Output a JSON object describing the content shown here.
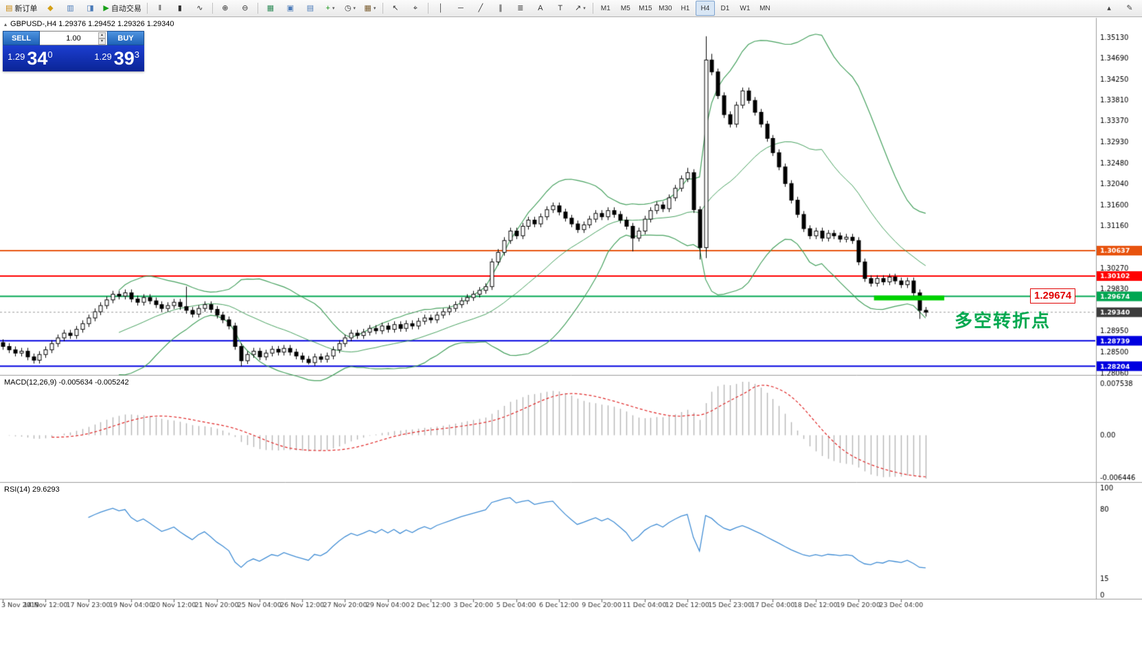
{
  "toolbar": {
    "items": [
      {
        "name": "new-order-button",
        "icon": "▤",
        "icon_name": "new-order-icon",
        "color": "#c8860a",
        "label": "新订单"
      },
      {
        "name": "chart-wizard-button",
        "icon": "◆",
        "icon_name": "wizard-icon",
        "color": "#d4a017"
      },
      {
        "name": "profiles-button",
        "icon": "▥",
        "icon_name": "profiles-icon",
        "color": "#4a7ab8"
      },
      {
        "name": "data-window-button",
        "icon": "◨",
        "icon_name": "data-window-icon",
        "color": "#4a7ab8"
      },
      {
        "name": "autotrading-button",
        "icon": "▶",
        "icon_name": "autotrading-play-icon",
        "color": "#18a018",
        "label": "自动交易"
      },
      {
        "sep": true
      },
      {
        "name": "bar-chart-button",
        "icon": "‖",
        "icon_name": "bar-chart-icon",
        "color": "#333"
      },
      {
        "name": "candlestick-button",
        "icon": "▮",
        "icon_name": "candlestick-icon",
        "color": "#333"
      },
      {
        "name": "line-chart-button",
        "icon": "∿",
        "icon_name": "line-chart-icon",
        "color": "#333"
      },
      {
        "sep": true
      },
      {
        "name": "zoom-in-button",
        "icon": "⊕",
        "icon_name": "zoom-in-icon",
        "color": "#333"
      },
      {
        "name": "zoom-out-button",
        "icon": "⊖",
        "icon_name": "zoom-out-icon",
        "color": "#333"
      },
      {
        "sep": true
      },
      {
        "name": "tile-windows-button",
        "icon": "▦",
        "icon_name": "tile-windows-icon",
        "color": "#2e8b57"
      },
      {
        "name": "cascade-windows-button",
        "icon": "▣",
        "icon_name": "cascade-windows-icon",
        "color": "#4a7ab8"
      },
      {
        "name": "arrange-windows-button",
        "icon": "▤",
        "icon_name": "arrange-windows-icon",
        "color": "#4a7ab8"
      },
      {
        "name": "indicators-button",
        "icon": "+",
        "icon_name": "add-indicator-icon",
        "color": "#149414",
        "caret": true
      },
      {
        "name": "periods-button",
        "icon": "◷",
        "icon_name": "clock-icon",
        "color": "#333",
        "caret": true
      },
      {
        "name": "templates-button",
        "icon": "▦",
        "icon_name": "template-icon",
        "color": "#7a5c2e",
        "caret": true
      },
      {
        "sep": true
      },
      {
        "name": "cursor-button",
        "icon": "↖",
        "icon_name": "cursor-icon",
        "color": "#333"
      },
      {
        "name": "crosshair-button",
        "icon": "⌖",
        "icon_name": "crosshair-icon",
        "color": "#333"
      },
      {
        "sep": true
      },
      {
        "name": "vertical-line-button",
        "icon": "│",
        "icon_name": "vertical-line-icon",
        "color": "#333"
      },
      {
        "name": "horizontal-line-button",
        "icon": "─",
        "icon_name": "horizontal-line-icon",
        "color": "#333"
      },
      {
        "name": "trendline-button",
        "icon": "╱",
        "icon_name": "trendline-icon",
        "color": "#333"
      },
      {
        "name": "channel-button",
        "icon": "∥",
        "icon_name": "channel-icon",
        "color": "#333"
      },
      {
        "name": "fibonacci-button",
        "icon": "≣",
        "icon_name": "fibonacci-icon",
        "color": "#333"
      },
      {
        "name": "text-button",
        "icon": "A",
        "icon_name": "text-tool-icon",
        "color": "#333"
      },
      {
        "name": "label-button",
        "icon": "T",
        "icon_name": "text-label-icon",
        "color": "#333"
      },
      {
        "name": "shapes-button",
        "icon": "↗",
        "icon_name": "arrows-shapes-icon",
        "color": "#333",
        "caret": true
      },
      {
        "sep": true
      }
    ],
    "timeframes": [
      {
        "name": "timeframe-m1-button",
        "label": "M1"
      },
      {
        "name": "timeframe-m5-button",
        "label": "M5"
      },
      {
        "name": "timeframe-m15-button",
        "label": "M15"
      },
      {
        "name": "timeframe-m30-button",
        "label": "M30"
      },
      {
        "name": "timeframe-h1-button",
        "label": "H1"
      },
      {
        "name": "timeframe-h4-button",
        "label": "H4",
        "active": true
      },
      {
        "name": "timeframe-d1-button",
        "label": "D1"
      },
      {
        "name": "timeframe-w1-button",
        "label": "W1"
      },
      {
        "name": "timeframe-mn-button",
        "label": "MN"
      }
    ],
    "right_items": [
      {
        "name": "toolbar-overflow-button",
        "icon": "▴",
        "icon_name": "chevron-up-icon",
        "color": "#444"
      },
      {
        "name": "customize-toolbar-button",
        "icon": "✎",
        "icon_name": "pencil-icon",
        "color": "#444"
      }
    ]
  },
  "chart": {
    "title": "GBPUSD-,H4  1.29376 1.29452 1.29326 1.29340",
    "symbol": "GBPUSD-",
    "timeframe": "H4"
  },
  "trade_panel": {
    "sell_label": "SELL",
    "buy_label": "BUY",
    "volume": "1.00",
    "sell_price": {
      "small": "1.29",
      "big": "34",
      "sup": "0"
    },
    "buy_price": {
      "small": "1.29",
      "big": "39",
      "sup": "3"
    }
  },
  "indicators": {
    "macd": {
      "label": "MACD(12,26,9) -0.005634 -0.005242",
      "scale_top": "0.007538",
      "scale_zero": "0.00",
      "scale_bottom": "-0.006446"
    },
    "rsi": {
      "label": "RSI(14) 29.6293",
      "scale": [
        "100",
        "80",
        "15",
        "0"
      ]
    }
  },
  "annotations": {
    "price_box": "1.29674",
    "turning_point": "多空转折点",
    "zone_color": "#00d200"
  },
  "chart_data": {
    "type": "candlestick",
    "symbol": "GBPUSD",
    "timeframe": "H4",
    "price_axis_labels": [
      "1.35130",
      "1.34690",
      "1.34250",
      "1.33810",
      "1.33370",
      "1.32930",
      "1.32480",
      "1.32040",
      "1.31600",
      "1.31160",
      "1.30270",
      "1.29830",
      "1.28950",
      "1.28500",
      "1.28060"
    ],
    "time_axis_labels": [
      "3 Nov 2019",
      "14 Nov 12:00",
      "17 Nov 23:00",
      "19 Nov 04:00",
      "20 Nov 12:00",
      "21 Nov 20:00",
      "25 Nov 04:00",
      "26 Nov 12:00",
      "27 Nov 20:00",
      "29 Nov 04:00",
      "2 Dec 12:00",
      "3 Dec 20:00",
      "5 Dec 04:00",
      "6 Dec 12:00",
      "9 Dec 20:00",
      "11 Dec 04:00",
      "12 Dec 12:00",
      "15 Dec 23:00",
      "17 Dec 04:00",
      "18 Dec 12:00",
      "19 Dec 20:00",
      "23 Dec 04:00"
    ],
    "hlines": [
      {
        "price": 1.30637,
        "label": "1.30637",
        "color": "#e8530e"
      },
      {
        "price": 1.30102,
        "label": "1.30102",
        "color": "#ff0000"
      },
      {
        "price": 1.29674,
        "label": "1.29674",
        "color": "#00a651"
      },
      {
        "price": 1.28739,
        "label": "1.28739",
        "color": "#0000e0"
      },
      {
        "price": 1.28204,
        "label": "1.28204",
        "color": "#0000e0"
      }
    ],
    "bid": {
      "price": 1.2934,
      "label": "1.29340",
      "tag_color": "#3c3c3c"
    },
    "zone": {
      "bar_start": 143,
      "bar_end": 154.5,
      "price": 1.2964,
      "color": "#00d200"
    },
    "candles": {
      "first_open": 1.287,
      "closes": [
        1.2862,
        1.2855,
        1.2848,
        1.2852,
        1.284,
        1.2833,
        1.2845,
        1.2855,
        1.2868,
        1.288,
        1.289,
        1.2885,
        1.2898,
        1.291,
        1.2922,
        1.2935,
        1.2948,
        1.296,
        1.2972,
        1.2968,
        1.2975,
        1.2962,
        1.2955,
        1.2965,
        1.2958,
        1.295,
        1.2942,
        1.2948,
        1.2955,
        1.2946,
        1.2938,
        1.293,
        1.2942,
        1.295,
        1.294,
        1.2928,
        1.2918,
        1.2905,
        1.2862,
        1.2832,
        1.2845,
        1.2852,
        1.284,
        1.2848,
        1.2856,
        1.285,
        1.2858,
        1.285,
        1.2842,
        1.2835,
        1.2828,
        1.284,
        1.2835,
        1.2842,
        1.2855,
        1.2868,
        1.288,
        1.289,
        1.2885,
        1.2892,
        1.29,
        1.2895,
        1.2905,
        1.2898,
        1.2908,
        1.29,
        1.291,
        1.2905,
        1.2915,
        1.2922,
        1.2918,
        1.2928,
        1.2935,
        1.2942,
        1.295,
        1.2958,
        1.2965,
        1.2972,
        1.298,
        1.2988,
        1.304,
        1.306,
        1.3085,
        1.3105,
        1.3095,
        1.3115,
        1.3128,
        1.312,
        1.3135,
        1.315,
        1.3158,
        1.3145,
        1.3132,
        1.312,
        1.3108,
        1.3118,
        1.313,
        1.3142,
        1.3135,
        1.3148,
        1.314,
        1.3128,
        1.3115,
        1.309,
        1.3105,
        1.313,
        1.3148,
        1.316,
        1.3152,
        1.3175,
        1.3195,
        1.3215,
        1.3228,
        1.315,
        1.307,
        1.3465,
        1.344,
        1.339,
        1.335,
        1.333,
        1.337,
        1.34,
        1.338,
        1.3355,
        1.333,
        1.33,
        1.327,
        1.324,
        1.3205,
        1.317,
        1.314,
        1.311,
        1.3095,
        1.3105,
        1.309,
        1.31,
        1.3095,
        1.3088,
        1.3092,
        1.3085,
        1.304,
        1.3005,
        1.2995,
        1.3005,
        1.2998,
        1.3008,
        1.3,
        1.2992,
        1.3,
        1.2975,
        1.2938,
        1.2934
      ],
      "overrides": {
        "30": {
          "h": 1.2988
        },
        "39": {
          "l": 1.282
        },
        "50": {
          "l": 1.2824
        },
        "103": {
          "l": 1.3062
        },
        "112": {
          "h": 1.3238
        },
        "114": {
          "l": 1.3045
        },
        "115": {
          "h": 1.3515,
          "l": 1.3048
        },
        "116": {
          "h": 1.3478
        },
        "150": {
          "l": 1.292
        },
        "151": {
          "l": 1.2925
        }
      }
    },
    "bollinger": {
      "period": 20,
      "deviation": 2,
      "color": "#43a05c"
    },
    "macd": {
      "fast": 12,
      "slow": 26,
      "signal": 9,
      "histogram_color": "#b4b4b4",
      "signal_color": "#e02020"
    },
    "rsi": {
      "period": 14,
      "color": "#3d8bd4"
    },
    "price_range": [
      1.2802,
      1.3548
    ]
  }
}
